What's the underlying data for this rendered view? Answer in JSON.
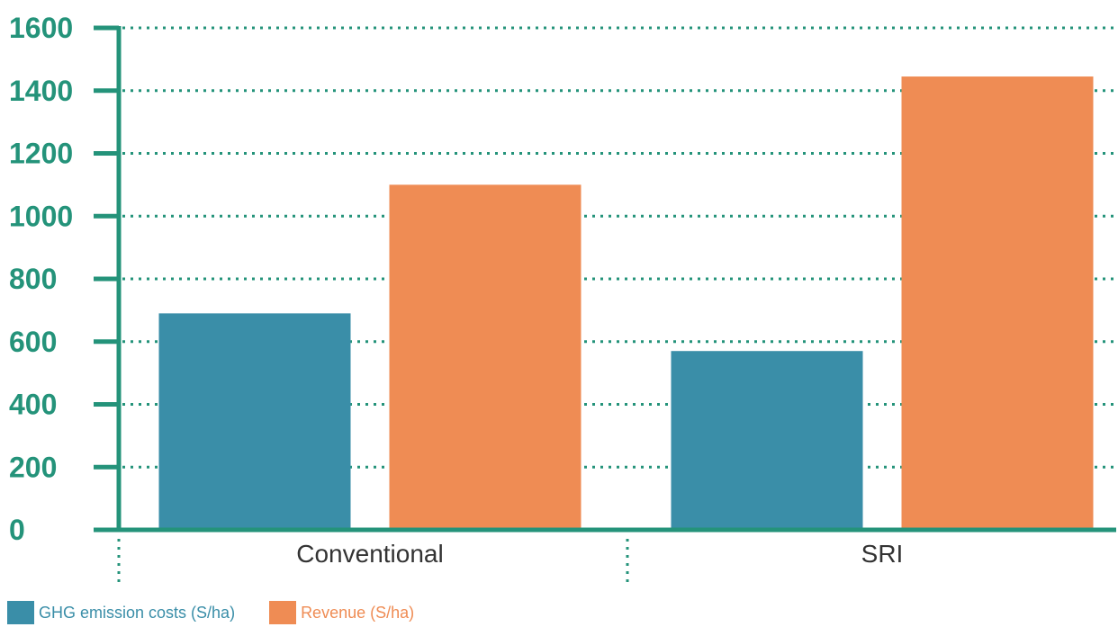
{
  "chart_data": {
    "type": "bar",
    "categories": [
      "Conventional",
      "SRI"
    ],
    "series": [
      {
        "name": "GHG emission costs (S/ha)",
        "values": [
          690,
          570
        ],
        "color": "#3a8ea8"
      },
      {
        "name": "Revenue (S/ha)",
        "values": [
          1100,
          1445
        ],
        "color": "#ef8c54"
      }
    ],
    "ylim": [
      0,
      1600
    ],
    "yticks": [
      "0",
      "200",
      "400",
      "600",
      "800",
      "1000",
      "1200",
      "1400",
      "1600"
    ],
    "grid": true,
    "legend_position": "bottom-left",
    "axis_color": "#24937a",
    "title": "",
    "xlabel": "",
    "ylabel": ""
  }
}
